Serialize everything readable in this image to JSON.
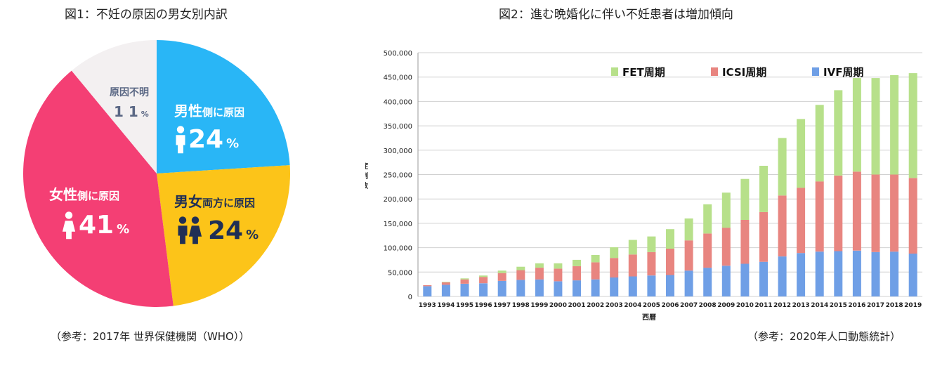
{
  "chart_data": [
    {
      "type": "pie",
      "title": "図1：不妊の原因の男女別内訳",
      "source": "（参考：2017年 世界保健機関（WHO））",
      "slices": [
        {
          "name": "男性側に原因",
          "label_main": "男性",
          "label_sub": "側に原因",
          "value": 24,
          "unit": "%",
          "color": "#29b6f6"
        },
        {
          "name": "男女両方に原因",
          "label_main": "男女",
          "label_sub": "両方に原因",
          "value": 24,
          "unit": "%",
          "color": "#fcc419"
        },
        {
          "name": "女性側に原因",
          "label_main": "女性",
          "label_sub": "側に原因",
          "value": 41,
          "unit": "%",
          "color": "#f43f74"
        },
        {
          "name": "原因不明",
          "label_main": "原因不明",
          "label_sub": "",
          "value": 11,
          "unit": "%",
          "color": "#f3f0f1"
        }
      ]
    },
    {
      "type": "bar",
      "stacked": true,
      "title": "図2：進む晩婚化に伴い不妊患者は増加傾向",
      "source": "（参考：2020年人口動態統計）",
      "xlabel": "西暦",
      "ylabel": "症例数",
      "ylim": [
        0,
        500000
      ],
      "yticks": [
        "0",
        "50,000",
        "100,000",
        "150,000",
        "200,000",
        "250,000",
        "300,000",
        "350,000",
        "400,000",
        "450,000",
        "500,000"
      ],
      "categories": [
        "1993",
        "1994",
        "1995",
        "1996",
        "1997",
        "1998",
        "1999",
        "2000",
        "2001",
        "2002",
        "2003",
        "2004",
        "2005",
        "2006",
        "2007",
        "2008",
        "2009",
        "2010",
        "2011",
        "2012",
        "2013",
        "2014",
        "2015",
        "2016",
        "2017",
        "2018",
        "2019"
      ],
      "series": [
        {
          "name": "IVF周期",
          "color": "#6f9fe6",
          "values": [
            21000,
            24000,
            26000,
            27000,
            32000,
            34000,
            35000,
            31000,
            33000,
            35000,
            39000,
            41000,
            43000,
            44000,
            53000,
            59000,
            63000,
            67000,
            71000,
            82000,
            89000,
            92000,
            93000,
            94000,
            91000,
            92000,
            88000
          ]
        },
        {
          "name": "ICSI周期",
          "color": "#e88580",
          "values": [
            2000,
            5000,
            9000,
            13000,
            16000,
            20000,
            24000,
            26000,
            29000,
            35000,
            40000,
            45000,
            48000,
            54000,
            62000,
            70000,
            78000,
            90000,
            102000,
            125000,
            134000,
            144000,
            155000,
            162000,
            159000,
            158000,
            155000
          ]
        },
        {
          "name": "FET周期",
          "color": "#b7e08a",
          "values": [
            0,
            1000,
            2000,
            3000,
            5000,
            7000,
            9000,
            11000,
            13000,
            15000,
            22000,
            30000,
            32000,
            40000,
            45000,
            60000,
            72000,
            84000,
            95000,
            118000,
            141000,
            157000,
            175000,
            192000,
            198000,
            204000,
            215000
          ]
        }
      ]
    }
  ]
}
